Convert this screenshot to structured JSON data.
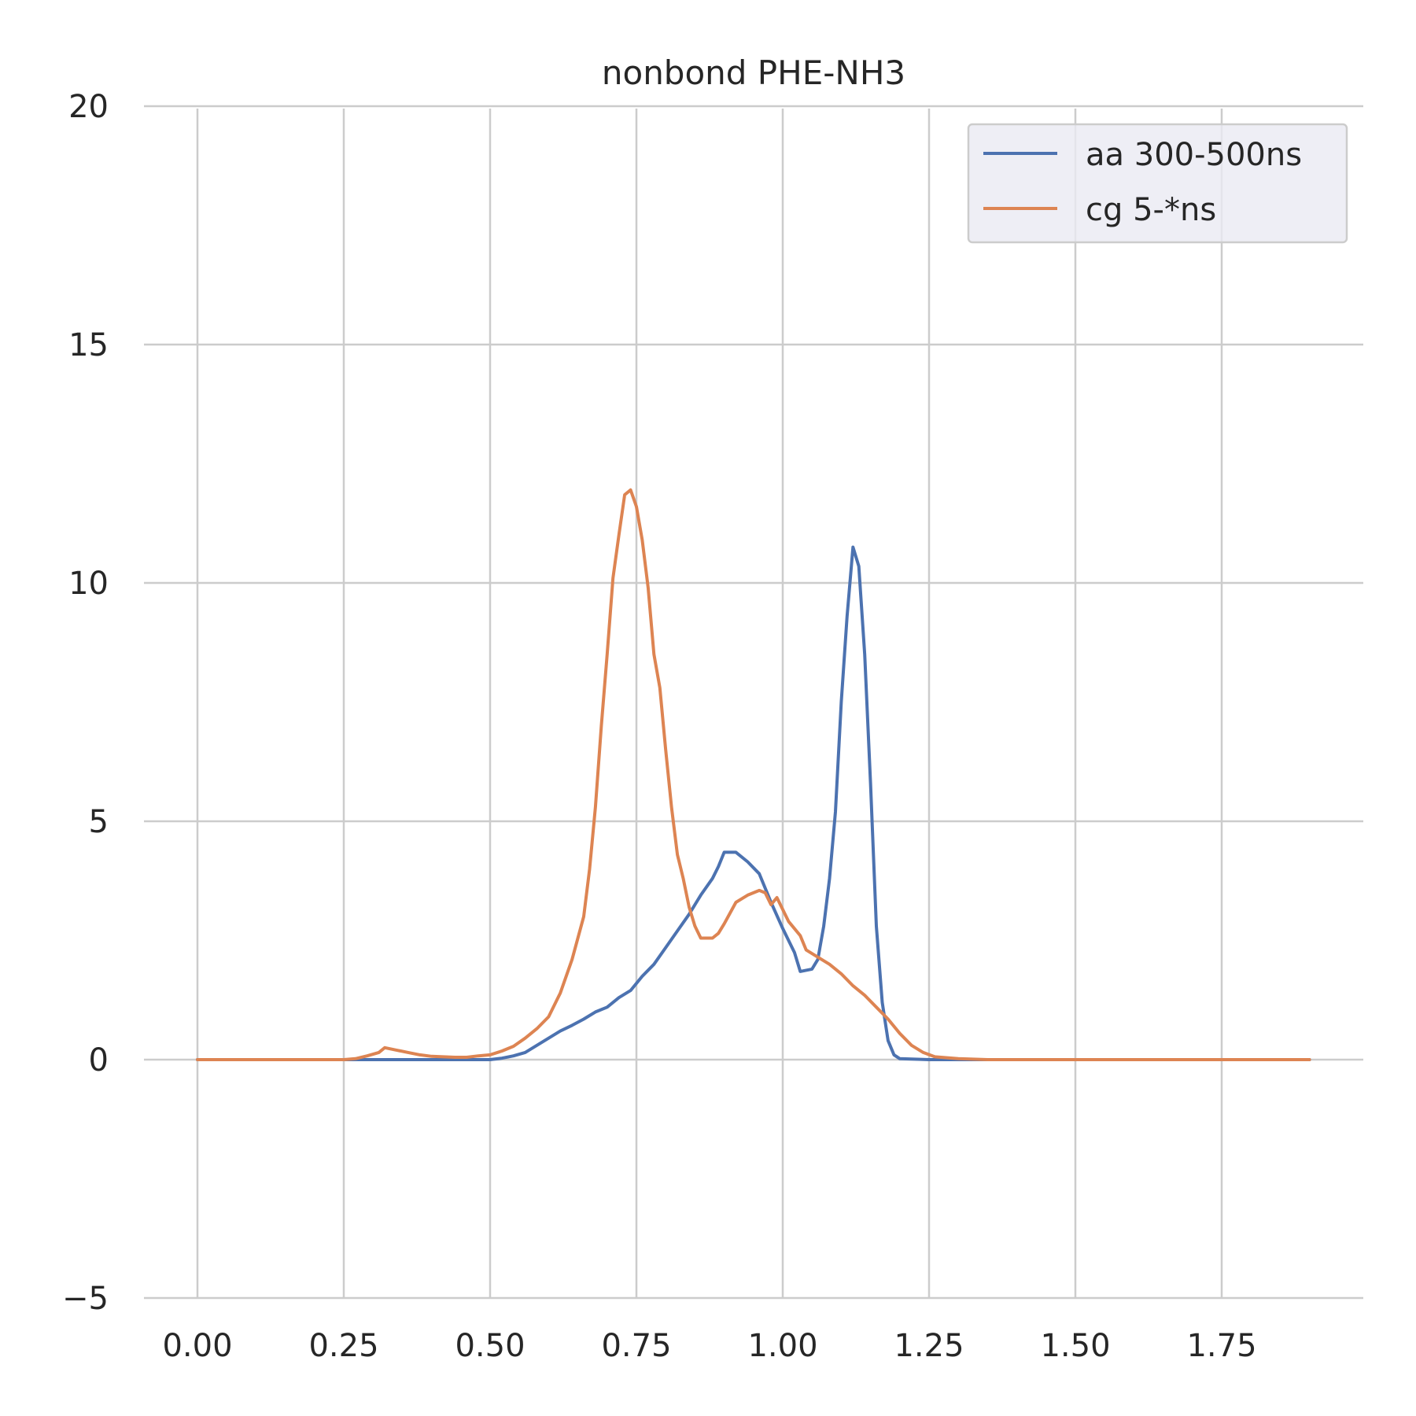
{
  "chart_data": {
    "type": "line",
    "title": "nonbond PHE-NH3",
    "xlabel": "",
    "ylabel": "",
    "xlim": [
      0.0,
      1.9
    ],
    "ylim": [
      -5,
      20
    ],
    "x_ticks": [
      0.0,
      0.25,
      0.5,
      0.75,
      1.0,
      1.25,
      1.5,
      1.75
    ],
    "x_tick_labels": [
      "0.00",
      "0.25",
      "0.50",
      "0.75",
      "1.00",
      "1.25",
      "1.50",
      "1.75"
    ],
    "y_ticks": [
      -5,
      0,
      5,
      10,
      15,
      20
    ],
    "y_tick_labels": [
      "−5",
      "0",
      "5",
      "10",
      "15",
      "20"
    ],
    "grid": true,
    "legend_position": "top-right",
    "series": [
      {
        "name": "aa 300-500ns",
        "color": "#4c72b0",
        "points": [
          [
            0.0,
            0.0
          ],
          [
            0.25,
            0.0
          ],
          [
            0.3,
            0.0
          ],
          [
            0.4,
            0.0
          ],
          [
            0.5,
            0.0
          ],
          [
            0.52,
            0.03
          ],
          [
            0.54,
            0.08
          ],
          [
            0.56,
            0.15
          ],
          [
            0.58,
            0.3
          ],
          [
            0.6,
            0.45
          ],
          [
            0.62,
            0.6
          ],
          [
            0.64,
            0.72
          ],
          [
            0.66,
            0.85
          ],
          [
            0.68,
            1.0
          ],
          [
            0.7,
            1.1
          ],
          [
            0.72,
            1.3
          ],
          [
            0.74,
            1.45
          ],
          [
            0.76,
            1.75
          ],
          [
            0.78,
            2.0
          ],
          [
            0.8,
            2.35
          ],
          [
            0.82,
            2.7
          ],
          [
            0.84,
            3.05
          ],
          [
            0.86,
            3.45
          ],
          [
            0.88,
            3.8
          ],
          [
            0.89,
            4.05
          ],
          [
            0.9,
            4.35
          ],
          [
            0.92,
            4.35
          ],
          [
            0.94,
            4.15
          ],
          [
            0.96,
            3.9
          ],
          [
            0.98,
            3.3
          ],
          [
            1.0,
            2.75
          ],
          [
            1.02,
            2.25
          ],
          [
            1.03,
            1.85
          ],
          [
            1.05,
            1.9
          ],
          [
            1.06,
            2.1
          ],
          [
            1.07,
            2.8
          ],
          [
            1.08,
            3.8
          ],
          [
            1.09,
            5.2
          ],
          [
            1.1,
            7.5
          ],
          [
            1.11,
            9.3
          ],
          [
            1.12,
            10.75
          ],
          [
            1.13,
            10.35
          ],
          [
            1.14,
            8.5
          ],
          [
            1.15,
            5.8
          ],
          [
            1.16,
            2.8
          ],
          [
            1.17,
            1.2
          ],
          [
            1.18,
            0.4
          ],
          [
            1.19,
            0.1
          ],
          [
            1.2,
            0.02
          ],
          [
            1.25,
            0.0
          ],
          [
            1.5,
            0.0
          ],
          [
            1.75,
            0.0
          ],
          [
            1.9,
            0.0
          ]
        ]
      },
      {
        "name": "cg 5-*ns",
        "color": "#dd8452",
        "points": [
          [
            0.0,
            0.0
          ],
          [
            0.25,
            0.0
          ],
          [
            0.27,
            0.02
          ],
          [
            0.29,
            0.08
          ],
          [
            0.31,
            0.15
          ],
          [
            0.32,
            0.25
          ],
          [
            0.34,
            0.2
          ],
          [
            0.36,
            0.15
          ],
          [
            0.38,
            0.1
          ],
          [
            0.4,
            0.07
          ],
          [
            0.44,
            0.05
          ],
          [
            0.46,
            0.05
          ],
          [
            0.48,
            0.08
          ],
          [
            0.5,
            0.1
          ],
          [
            0.52,
            0.18
          ],
          [
            0.54,
            0.28
          ],
          [
            0.56,
            0.45
          ],
          [
            0.58,
            0.65
          ],
          [
            0.6,
            0.9
          ],
          [
            0.62,
            1.4
          ],
          [
            0.64,
            2.1
          ],
          [
            0.66,
            3.0
          ],
          [
            0.67,
            4.0
          ],
          [
            0.68,
            5.3
          ],
          [
            0.69,
            7.0
          ],
          [
            0.7,
            8.5
          ],
          [
            0.71,
            10.1
          ],
          [
            0.72,
            11.0
          ],
          [
            0.73,
            11.85
          ],
          [
            0.74,
            11.95
          ],
          [
            0.75,
            11.6
          ],
          [
            0.76,
            10.9
          ],
          [
            0.77,
            9.9
          ],
          [
            0.78,
            8.5
          ],
          [
            0.79,
            7.8
          ],
          [
            0.8,
            6.5
          ],
          [
            0.81,
            5.3
          ],
          [
            0.82,
            4.3
          ],
          [
            0.83,
            3.8
          ],
          [
            0.84,
            3.2
          ],
          [
            0.85,
            2.8
          ],
          [
            0.86,
            2.55
          ],
          [
            0.88,
            2.55
          ],
          [
            0.89,
            2.65
          ],
          [
            0.9,
            2.85
          ],
          [
            0.92,
            3.3
          ],
          [
            0.94,
            3.45
          ],
          [
            0.96,
            3.55
          ],
          [
            0.97,
            3.5
          ],
          [
            0.98,
            3.25
          ],
          [
            0.99,
            3.4
          ],
          [
            1.0,
            3.15
          ],
          [
            1.01,
            2.9
          ],
          [
            1.03,
            2.6
          ],
          [
            1.04,
            2.3
          ],
          [
            1.06,
            2.15
          ],
          [
            1.08,
            2.0
          ],
          [
            1.1,
            1.8
          ],
          [
            1.12,
            1.55
          ],
          [
            1.14,
            1.35
          ],
          [
            1.16,
            1.1
          ],
          [
            1.18,
            0.85
          ],
          [
            1.2,
            0.55
          ],
          [
            1.22,
            0.3
          ],
          [
            1.24,
            0.15
          ],
          [
            1.26,
            0.06
          ],
          [
            1.3,
            0.02
          ],
          [
            1.35,
            0.0
          ],
          [
            1.5,
            0.0
          ],
          [
            1.75,
            0.0
          ],
          [
            1.9,
            0.0
          ]
        ]
      }
    ]
  }
}
